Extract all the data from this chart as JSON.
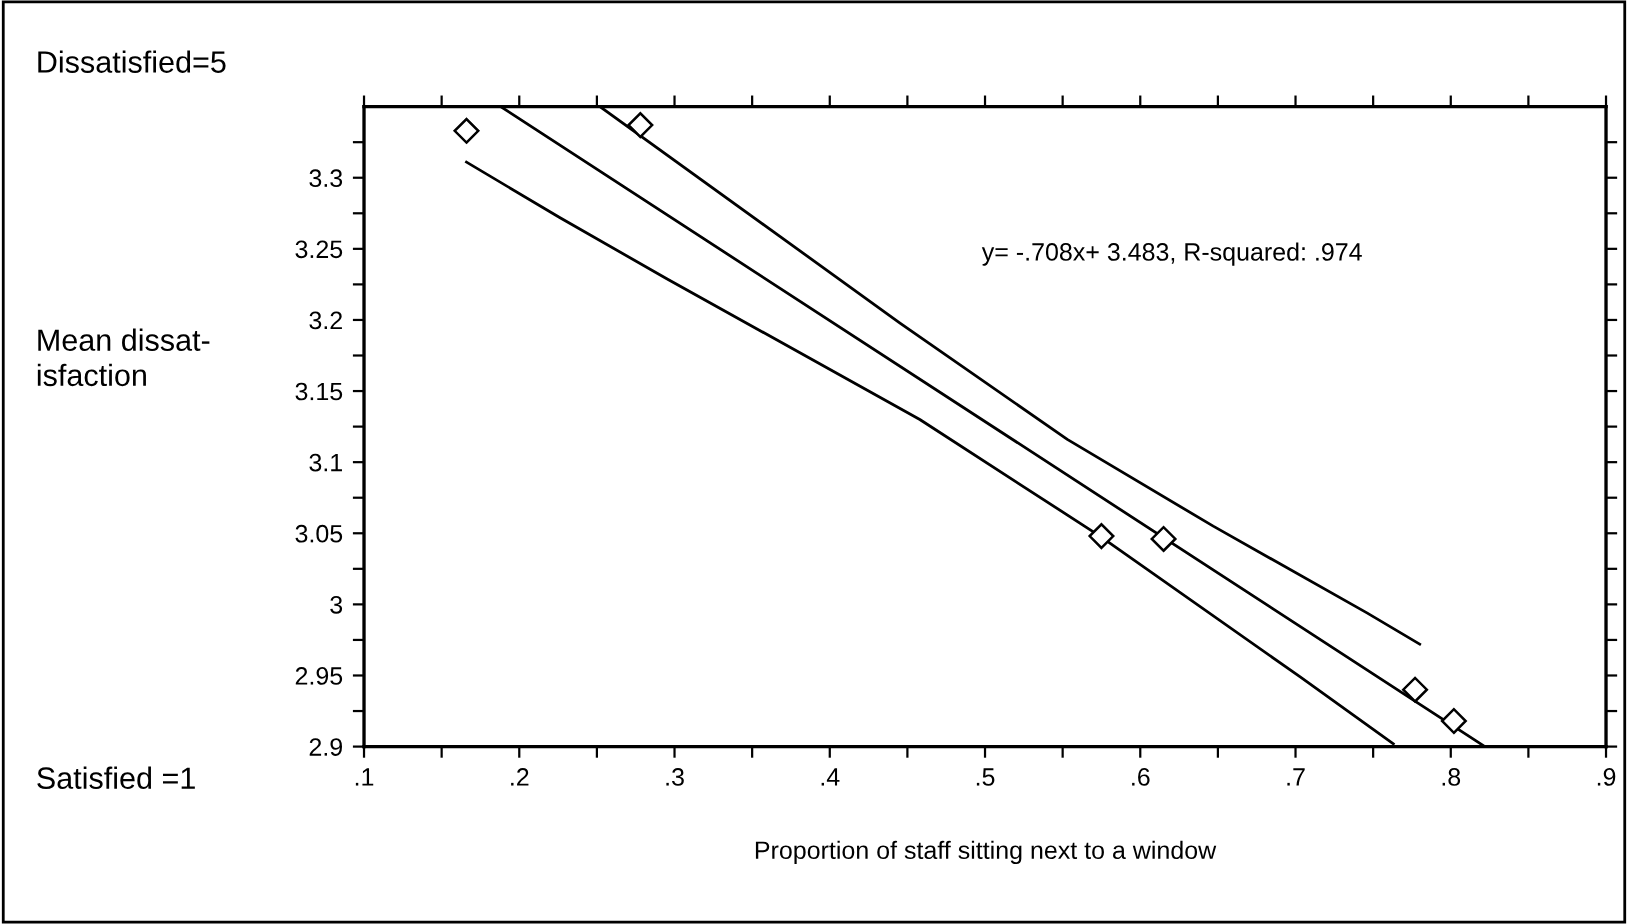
{
  "chart_data": {
    "type": "scatter",
    "xlabel": "Proportion of staff sitting next to a window",
    "ylabel": "Mean dissat-\nisfaction",
    "annotations": [
      "Dissatisfied=5",
      "Satisfied =1",
      "y= -.708x+ 3.483, R-squared: .974"
    ],
    "xlim": [
      0.1,
      0.9
    ],
    "ylim": [
      2.9,
      3.35
    ],
    "xticks": [
      {
        "value": 0.1,
        "label": ".1"
      },
      {
        "value": 0.15,
        "label": null
      },
      {
        "value": 0.2,
        "label": ".2"
      },
      {
        "value": 0.25,
        "label": null
      },
      {
        "value": 0.3,
        "label": ".3"
      },
      {
        "value": 0.35,
        "label": null
      },
      {
        "value": 0.4,
        "label": ".4"
      },
      {
        "value": 0.45,
        "label": null
      },
      {
        "value": 0.5,
        "label": ".5"
      },
      {
        "value": 0.55,
        "label": null
      },
      {
        "value": 0.6,
        "label": ".6"
      },
      {
        "value": 0.65,
        "label": null
      },
      {
        "value": 0.7,
        "label": ".7"
      },
      {
        "value": 0.75,
        "label": null
      },
      {
        "value": 0.8,
        "label": ".8"
      },
      {
        "value": 0.85,
        "label": null
      },
      {
        "value": 0.9,
        "label": ".9"
      }
    ],
    "yticks": [
      {
        "value": 2.9,
        "label": "2.9"
      },
      {
        "value": 2.925,
        "label": null
      },
      {
        "value": 2.95,
        "label": "2.95"
      },
      {
        "value": 2.975,
        "label": null
      },
      {
        "value": 3,
        "label": "3"
      },
      {
        "value": 3.025,
        "label": null
      },
      {
        "value": 3.05,
        "label": "3.05"
      },
      {
        "value": 3.075,
        "label": null
      },
      {
        "value": 3.1,
        "label": "3.1"
      },
      {
        "value": 3.125,
        "label": null
      },
      {
        "value": 3.15,
        "label": "3.15"
      },
      {
        "value": 3.175,
        "label": null
      },
      {
        "value": 3.2,
        "label": "3.2"
      },
      {
        "value": 3.225,
        "label": null
      },
      {
        "value": 3.25,
        "label": "3.25"
      },
      {
        "value": 3.275,
        "label": null
      },
      {
        "value": 3.3,
        "label": "3.3"
      },
      {
        "value": 3.325,
        "label": null
      }
    ],
    "grid": false,
    "legend": false,
    "series": [
      {
        "marker": "diamond",
        "color": "#000000",
        "x": [
          0.166,
          0.278,
          0.575,
          0.615,
          0.777,
          0.802
        ],
        "values": [
          3.333,
          3.337,
          3.048,
          3.046,
          2.94,
          2.918
        ]
      },
      {
        "type": "line",
        "marker": "none",
        "line_style": "solid",
        "color": "#000000",
        "x": [
          0.188,
          0.822
        ],
        "values": [
          3.35,
          2.9
        ]
      },
      {
        "type": "line",
        "marker": "none",
        "line_style": "solid",
        "color": "#000000",
        "x": [
          0.252,
          0.445,
          0.553,
          0.647,
          0.746,
          0.78
        ],
        "values": [
          3.35,
          3.198,
          3.116,
          3.055,
          2.994,
          2.972
        ]
      },
      {
        "type": "line",
        "marker": "none",
        "line_style": "solid",
        "color": "#000000",
        "x": [
          0.166,
          0.226,
          0.295,
          0.458,
          0.574,
          0.703,
          0.763
        ],
        "values": [
          3.311,
          3.272,
          3.229,
          3.13,
          3.048,
          2.949,
          2.902
        ]
      }
    ]
  }
}
